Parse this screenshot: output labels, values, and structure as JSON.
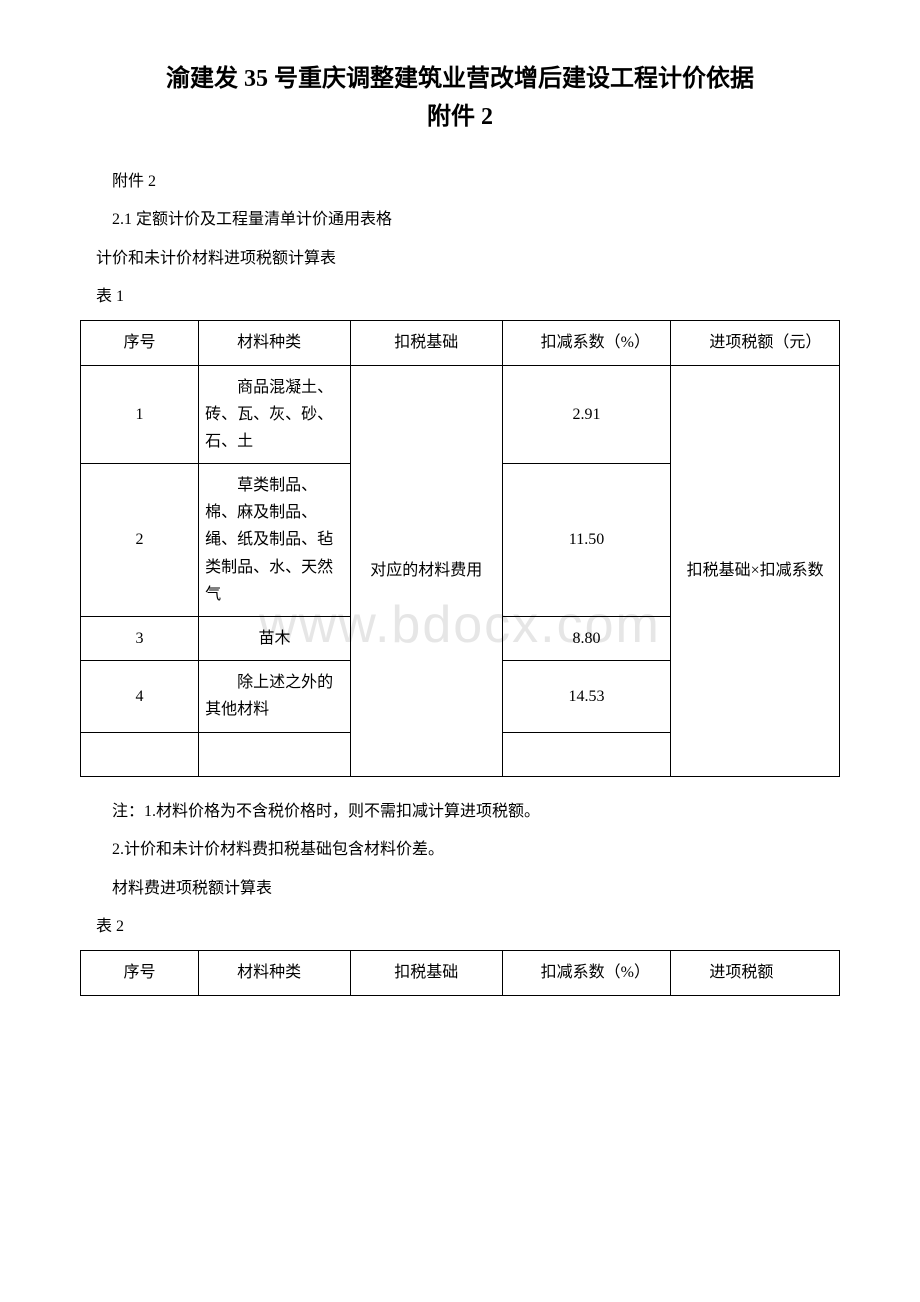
{
  "watermark": "www.bdocx.com",
  "title_line1": "渝建发 35 号重庆调整建筑业营改增后建设工程计价依据",
  "title_line2": "附件 2",
  "p1": "附件 2",
  "p2": "2.1 定额计价及工程量清单计价通用表格",
  "p3": "计价和未计价材料进项税额计算表",
  "p4": "表 1",
  "table1": {
    "header": {
      "seq": "序号",
      "type": "材料种类",
      "basis": "扣税基础",
      "coef": "扣减系数（%）",
      "tax": "进项税额（元）"
    },
    "basis_merged": "对应的材料费用",
    "tax_merged": "扣税基础×扣减系数",
    "rows": [
      {
        "seq": "1",
        "type": "商品混凝土、砖、瓦、灰、砂、石、土",
        "coef": "2.91"
      },
      {
        "seq": "2",
        "type": "草类制品、棉、麻及制品、绳、纸及制品、毡类制品、水、天然气",
        "coef": "11.50"
      },
      {
        "seq": "3",
        "type": "苗木",
        "coef": "8.80"
      },
      {
        "seq": "4",
        "type": "除上述之外的其他材料",
        "coef": "14.53"
      }
    ]
  },
  "note1": "注：1.材料价格为不含税价格时，则不需扣减计算进项税额。",
  "note2": "2.计价和未计价材料费扣税基础包含材料价差。",
  "p5": "材料费进项税额计算表",
  "p6": "表 2",
  "table2": {
    "header": {
      "seq": "序号",
      "type": "材料种类",
      "basis": "扣税基础",
      "coef": "扣减系数（%）",
      "tax": "进项税额"
    }
  }
}
